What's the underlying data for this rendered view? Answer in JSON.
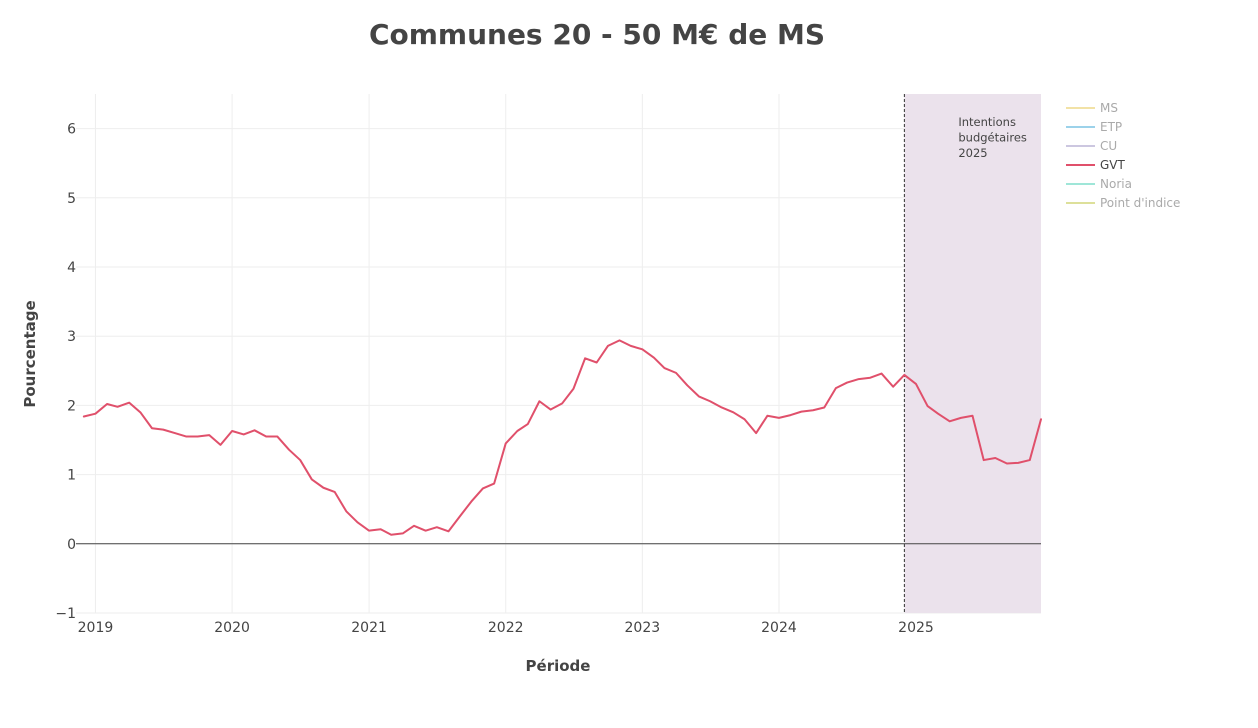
{
  "chart_data": {
    "type": "line",
    "title": "Communes 20 - 50 M€ de MS",
    "xlabel": "Période",
    "ylabel": "Pourcentage",
    "xlim": [
      "2018-11-10",
      "2025-12-01"
    ],
    "ylim": [
      -1,
      6.5
    ],
    "x_tick_labels": [
      {
        "date": "2019-01-01",
        "label": "2019"
      },
      {
        "date": "2020-01-01",
        "label": "2020"
      },
      {
        "date": "2021-01-01",
        "label": "2021"
      },
      {
        "date": "2022-01-01",
        "label": "2022"
      },
      {
        "date": "2023-01-01",
        "label": "2023"
      },
      {
        "date": "2024-01-01",
        "label": "2024"
      },
      {
        "date": "2025-01-01",
        "label": "2025"
      }
    ],
    "y_ticks": [
      -1,
      0,
      1,
      2,
      3,
      4,
      5,
      6
    ],
    "y_tick_labels": [
      "−1",
      "0",
      "1",
      "2",
      "3",
      "4",
      "5",
      "6"
    ],
    "grid": true,
    "legend_position": "top-right",
    "legend": [
      {
        "name": "MS",
        "color": "#f2e2a6",
        "active": false
      },
      {
        "name": "ETP",
        "color": "#9cd2ea",
        "active": false
      },
      {
        "name": "CU",
        "color": "#ccc7e0",
        "active": false
      },
      {
        "name": "GVT",
        "color": "#e0506b",
        "active": true
      },
      {
        "name": "Noria",
        "color": "#9fe6d8",
        "active": false
      },
      {
        "name": "Point d'indice",
        "color": "#dde09a",
        "active": false
      }
    ],
    "shaded_region": {
      "x_start": "2024-12-01",
      "x_end": "2025-12-01",
      "label_lines": [
        "Intentions",
        "budgétaires",
        "2025"
      ],
      "color": "#ebe2ec"
    },
    "series": [
      {
        "name": "GVT",
        "color": "#e0506b",
        "x": [
          "2018-12-01",
          "2019-01-01",
          "2019-02-01",
          "2019-03-01",
          "2019-04-01",
          "2019-05-01",
          "2019-06-01",
          "2019-07-01",
          "2019-08-01",
          "2019-09-01",
          "2019-10-01",
          "2019-11-01",
          "2019-12-01",
          "2020-01-01",
          "2020-02-01",
          "2020-03-01",
          "2020-04-01",
          "2020-05-01",
          "2020-06-01",
          "2020-07-01",
          "2020-08-01",
          "2020-09-01",
          "2020-10-01",
          "2020-11-01",
          "2020-12-01",
          "2021-01-01",
          "2021-02-01",
          "2021-03-01",
          "2021-04-01",
          "2021-05-01",
          "2021-06-01",
          "2021-07-01",
          "2021-08-01",
          "2021-09-01",
          "2021-10-01",
          "2021-11-01",
          "2021-12-01",
          "2022-01-01",
          "2022-02-01",
          "2022-03-01",
          "2022-04-01",
          "2022-05-01",
          "2022-06-01",
          "2022-07-01",
          "2022-08-01",
          "2022-09-01",
          "2022-10-01",
          "2022-11-01",
          "2022-12-01",
          "2023-01-01",
          "2023-02-01",
          "2023-03-01",
          "2023-04-01",
          "2023-05-01",
          "2023-06-01",
          "2023-07-01",
          "2023-08-01",
          "2023-09-01",
          "2023-10-01",
          "2023-11-01",
          "2023-12-01",
          "2024-01-01",
          "2024-02-01",
          "2024-03-01",
          "2024-04-01",
          "2024-05-01",
          "2024-06-01",
          "2024-07-01",
          "2024-08-01",
          "2024-09-01",
          "2024-10-01",
          "2024-11-01",
          "2024-12-01",
          "2025-01-01",
          "2025-02-01",
          "2025-03-01",
          "2025-04-01",
          "2025-05-01",
          "2025-06-01",
          "2025-07-01",
          "2025-08-01",
          "2025-09-01",
          "2025-10-01",
          "2025-11-01",
          "2025-12-01"
        ],
        "y": [
          1.84,
          1.88,
          2.02,
          1.98,
          2.04,
          1.9,
          1.67,
          1.65,
          1.6,
          1.55,
          1.55,
          1.57,
          1.43,
          1.63,
          1.58,
          1.64,
          1.55,
          1.55,
          1.36,
          1.21,
          0.93,
          0.81,
          0.75,
          0.47,
          0.31,
          0.19,
          0.21,
          0.13,
          0.15,
          0.26,
          0.19,
          0.24,
          0.18,
          0.4,
          0.61,
          0.8,
          0.87,
          1.45,
          1.63,
          1.73,
          2.06,
          1.94,
          2.03,
          2.24,
          2.68,
          2.62,
          2.86,
          2.94,
          2.86,
          2.81,
          2.69,
          2.54,
          2.47,
          2.29,
          2.13,
          2.06,
          1.97,
          1.9,
          1.8,
          1.6,
          1.85,
          1.82,
          1.86,
          1.91,
          1.93,
          1.97,
          2.25,
          2.33,
          2.38,
          2.4,
          2.46,
          2.27,
          2.44,
          2.31,
          1.99,
          1.88,
          1.77,
          1.82,
          1.85,
          1.21,
          1.24,
          1.16,
          1.17,
          1.21,
          1.8
        ]
      }
    ]
  }
}
